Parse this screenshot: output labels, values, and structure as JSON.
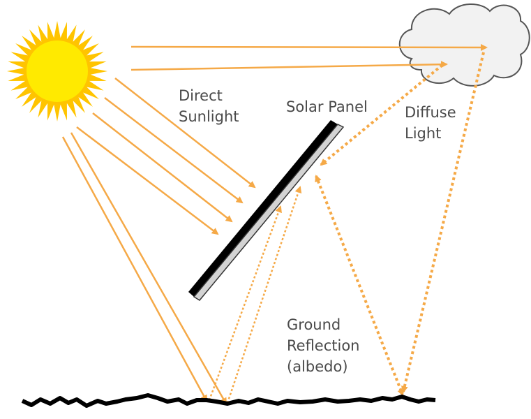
{
  "labels": {
    "direct": [
      "Direct",
      "Sunlight"
    ],
    "panel": "Solar Panel",
    "diffuse": [
      "Diffuse",
      "Light"
    ],
    "ground": [
      "Ground",
      "Reflection",
      "(albedo)"
    ]
  },
  "colors": {
    "sun_core": "#ffea00",
    "sun_rays": "#ffc400",
    "beam": "#f5a947",
    "cloud_fill": "#f2f2f2",
    "cloud_stroke": "#555555",
    "panel_back": "#000000",
    "panel_face": "#d3d3d3",
    "ground": "#000000",
    "text": "#4a4a4a"
  }
}
